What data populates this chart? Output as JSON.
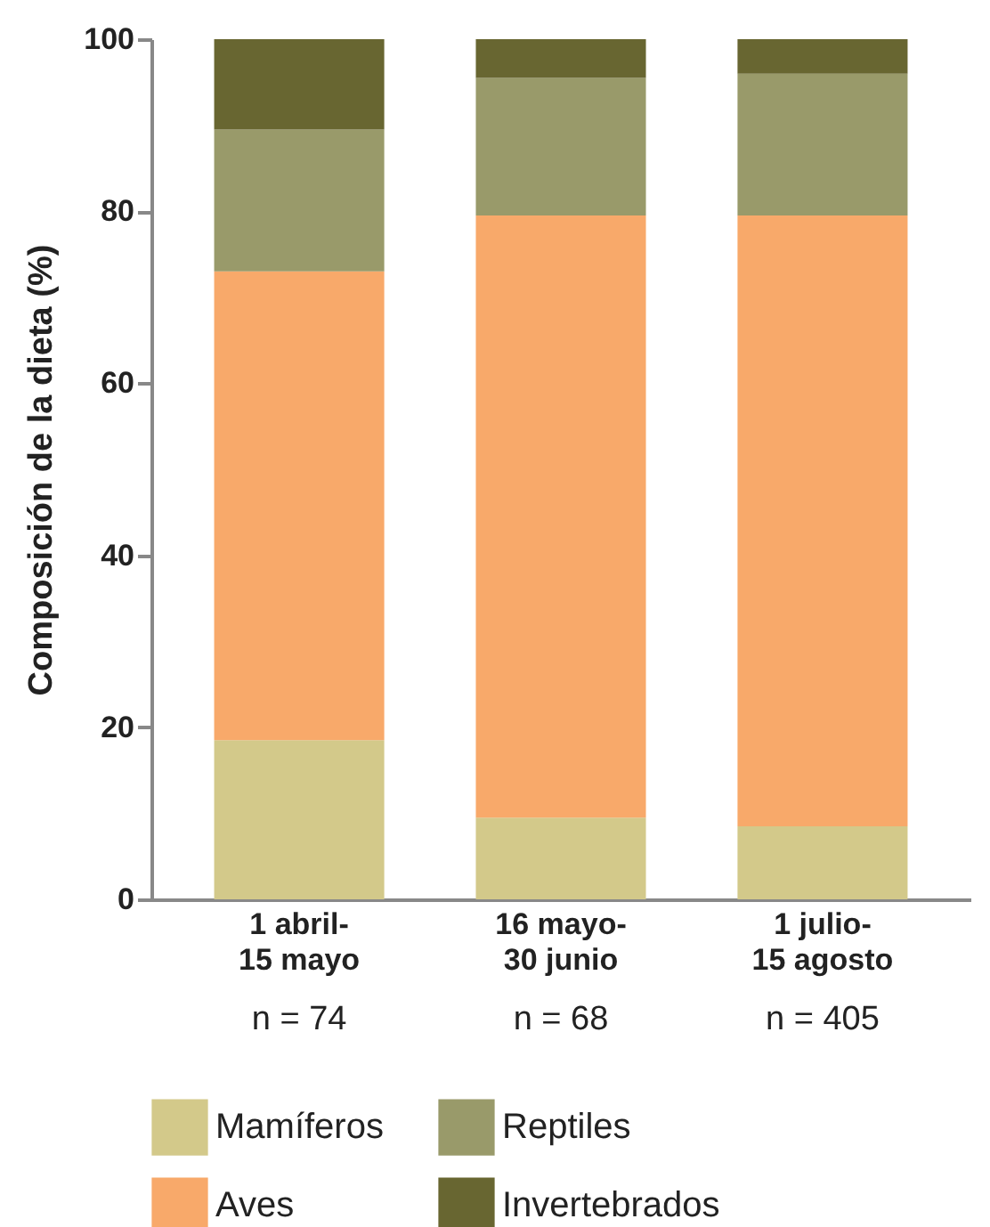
{
  "chart_data": {
    "type": "bar",
    "stacked": true,
    "ylabel": "Composición de la dieta (%)",
    "categories": [
      "1 abril-\n15 mayo",
      "16 mayo-\n30 junio",
      "1 julio-\n15 agosto"
    ],
    "series": [
      {
        "name": "Mamíferos",
        "color": "#d3c98a",
        "values": [
          18.5,
          9.5,
          8.5
        ]
      },
      {
        "name": "Aves",
        "color": "#f8a96a",
        "values": [
          54.5,
          70,
          71
        ]
      },
      {
        "name": "Reptiles",
        "color": "#999a6a",
        "values": [
          16.5,
          16,
          16.5
        ]
      },
      {
        "name": "Invertebrados",
        "color": "#686631",
        "values": [
          10.5,
          4.5,
          4
        ]
      }
    ],
    "ylim": [
      0,
      100
    ],
    "yticks": [
      0,
      20,
      40,
      60,
      80,
      100
    ],
    "grid": false,
    "legend": "bottom",
    "annotations": [
      "n = 74",
      "n = 68",
      "n = 405"
    ]
  }
}
